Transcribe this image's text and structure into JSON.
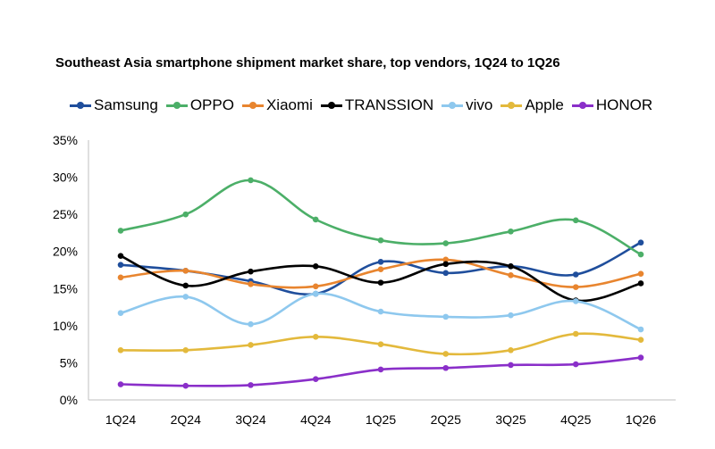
{
  "chart_data": {
    "type": "line",
    "title": "Southeast Asia smartphone shipment market share, top vendors, 1Q24 to 1Q26",
    "xlabel": "",
    "ylabel": "",
    "categories": [
      "1Q24",
      "2Q24",
      "3Q24",
      "4Q24",
      "1Q25",
      "2Q25",
      "3Q25",
      "4Q25",
      "1Q26"
    ],
    "y_ticks": [
      "0%",
      "5%",
      "10%",
      "15%",
      "20%",
      "25%",
      "30%",
      "35%"
    ],
    "ylim": [
      0,
      35
    ],
    "grid": false,
    "legend_position": "top",
    "smooth": true,
    "series": [
      {
        "name": "Samsung",
        "color": "#1f4e9c",
        "values": [
          18.2,
          17.4,
          16.0,
          14.3,
          18.6,
          17.1,
          18.0,
          16.9,
          21.2
        ]
      },
      {
        "name": "OPPO",
        "color": "#4caf68",
        "values": [
          22.8,
          25.0,
          29.6,
          24.3,
          21.5,
          21.1,
          22.7,
          24.2,
          19.6
        ]
      },
      {
        "name": "Xiaomi",
        "color": "#e8852f",
        "values": [
          16.5,
          17.4,
          15.6,
          15.3,
          17.6,
          18.9,
          16.8,
          15.2,
          17.0
        ]
      },
      {
        "name": "TRANSSION",
        "color": "#000000",
        "values": [
          19.4,
          15.4,
          17.3,
          18.0,
          15.8,
          18.3,
          18.0,
          13.4,
          15.7
        ]
      },
      {
        "name": "vivo",
        "color": "#8ec8ee",
        "values": [
          11.7,
          13.9,
          10.2,
          14.3,
          11.9,
          11.2,
          11.4,
          13.3,
          9.5
        ]
      },
      {
        "name": "Apple",
        "color": "#e3b93c",
        "values": [
          6.7,
          6.7,
          7.4,
          8.5,
          7.5,
          6.2,
          6.7,
          8.9,
          8.1
        ]
      },
      {
        "name": "HONOR",
        "color": "#8a2fc9",
        "values": [
          2.1,
          1.9,
          2.0,
          2.8,
          4.1,
          4.3,
          4.7,
          4.8,
          5.7
        ]
      }
    ]
  }
}
